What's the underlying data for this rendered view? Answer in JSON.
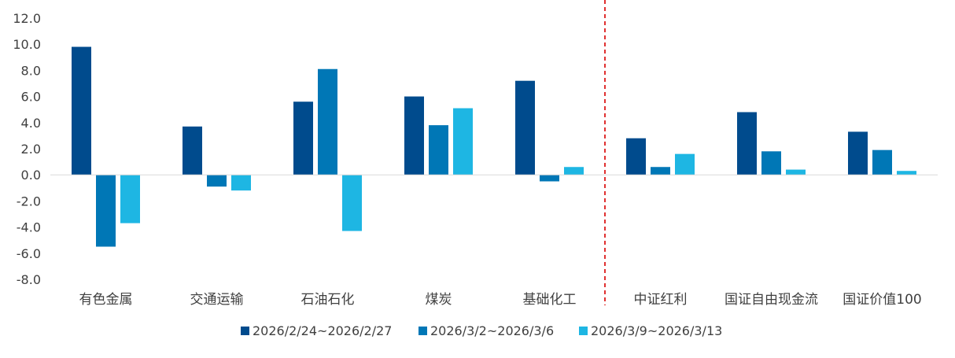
{
  "chart_data": {
    "type": "bar",
    "categories": [
      "有色金属",
      "交通运输",
      "石油石化",
      "煤炭",
      "基础化工",
      "中证红利",
      "国证自由现金流",
      "国证价值100"
    ],
    "series": [
      {
        "name": "2026/2/24~2026/2/27",
        "color": "#004B8D",
        "values": [
          9.8,
          3.7,
          5.6,
          6.0,
          7.2,
          2.8,
          4.8,
          3.3
        ]
      },
      {
        "name": "2026/3/2~2026/3/6",
        "color": "#0077B6",
        "values": [
          -5.5,
          -0.9,
          8.1,
          3.8,
          -0.5,
          0.6,
          1.8,
          1.9
        ]
      },
      {
        "name": "2026/3/9~2026/3/13",
        "color": "#1EB6E3",
        "values": [
          -3.7,
          -1.2,
          -4.3,
          5.1,
          0.6,
          1.6,
          0.4,
          0.3
        ]
      }
    ],
    "yticks": [
      "12.0",
      "10.0",
      "8.0",
      "6.0",
      "4.0",
      "2.0",
      "0.0",
      "-2.0",
      "-4.0",
      "-6.0",
      "-8.0"
    ],
    "ylim": [
      -8,
      12
    ],
    "divider_after_category_index": 4,
    "divider_color": "#E03030",
    "grid": false,
    "legend_position": "bottom"
  }
}
